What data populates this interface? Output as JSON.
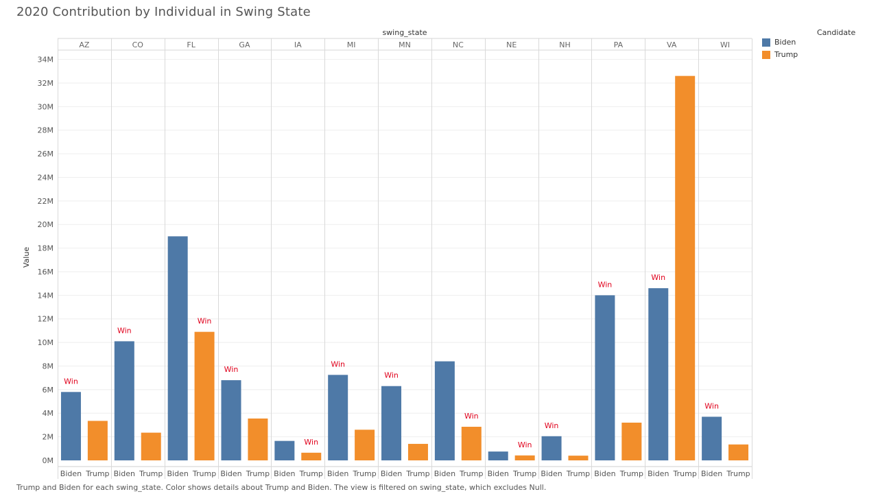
{
  "title": "2020 Contribution by Individual in Swing State",
  "footnote": "Trump and Biden for each swing_state.  Color shows details about Trump and Biden. The view is filtered on swing_state, which excludes Null.",
  "legend": {
    "title": "Candidate",
    "items": [
      {
        "label": "Biden",
        "color": "#4e79a7"
      },
      {
        "label": "Trump",
        "color": "#f28e2b"
      }
    ]
  },
  "win_label": "Win",
  "win_color": "#e0001b",
  "chart_data": {
    "type": "bar",
    "column_header": "swing_state",
    "ylabel": "Value",
    "ylim": [
      0,
      34500000
    ],
    "yticks": [
      0,
      2000000,
      4000000,
      6000000,
      8000000,
      10000000,
      12000000,
      14000000,
      16000000,
      18000000,
      20000000,
      22000000,
      24000000,
      26000000,
      28000000,
      30000000,
      32000000,
      34000000
    ],
    "ytick_labels": [
      "0M",
      "2M",
      "4M",
      "6M",
      "8M",
      "10M",
      "12M",
      "14M",
      "16M",
      "18M",
      "20M",
      "22M",
      "24M",
      "26M",
      "28M",
      "30M",
      "32M",
      "34M"
    ],
    "grid": true,
    "categories": [
      "AZ",
      "CO",
      "FL",
      "GA",
      "IA",
      "MI",
      "MN",
      "NC",
      "NE",
      "NH",
      "PA",
      "VA",
      "WI"
    ],
    "subcategories": [
      "Biden",
      "Trump"
    ],
    "series": [
      {
        "name": "Biden",
        "values": [
          5800000,
          10100000,
          19000000,
          6800000,
          1650000,
          7250000,
          6300000,
          8400000,
          750000,
          2050000,
          14000000,
          14600000,
          3700000
        ]
      },
      {
        "name": "Trump",
        "values": [
          3350000,
          2350000,
          10900000,
          3550000,
          650000,
          2600000,
          1400000,
          2850000,
          420000,
          400000,
          3200000,
          32600000,
          1350000
        ]
      }
    ],
    "winners": [
      "Biden",
      "Biden",
      "Trump",
      "Biden",
      "Trump",
      "Biden",
      "Biden",
      "Trump",
      "Trump",
      "Biden",
      "Biden",
      "Biden",
      "Biden"
    ]
  }
}
